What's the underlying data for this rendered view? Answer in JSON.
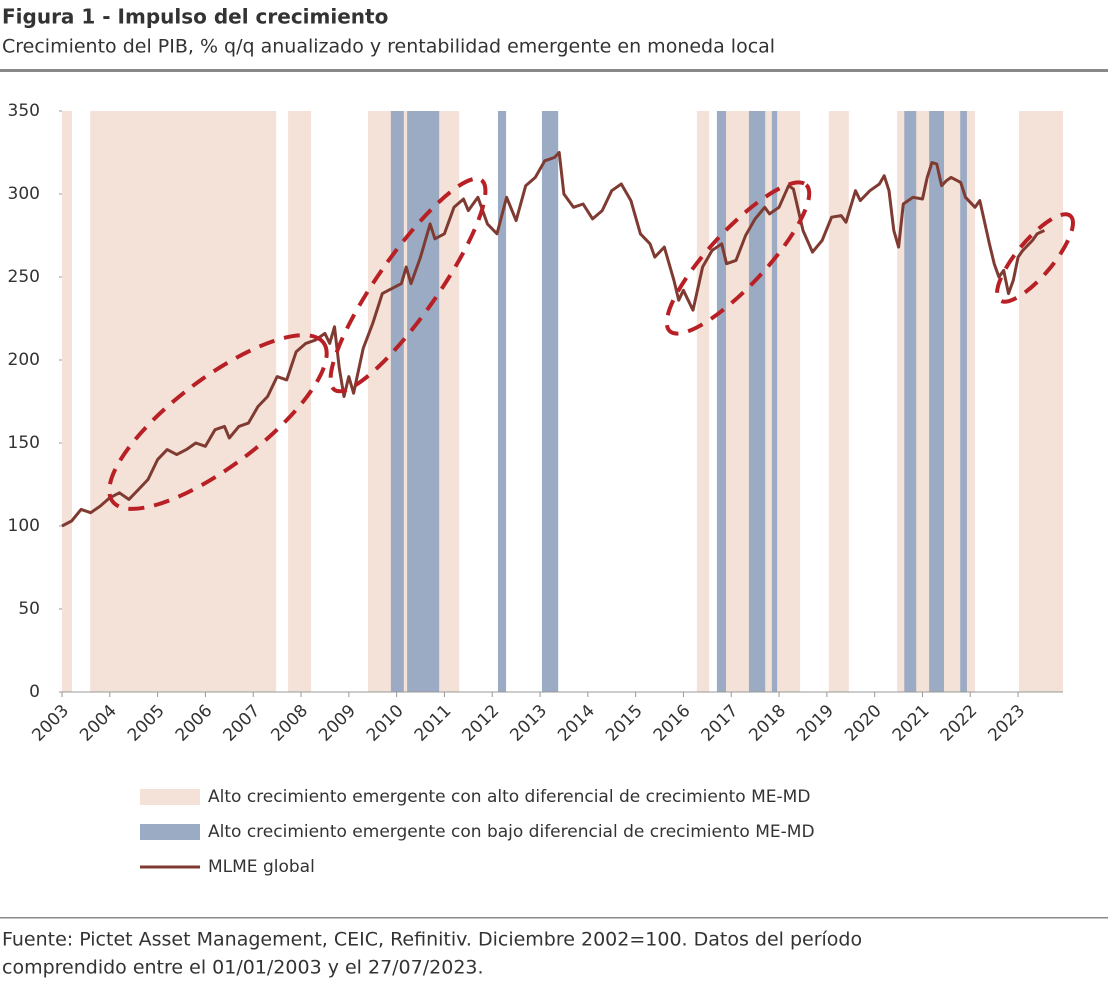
{
  "chart_data": {
    "type": "line",
    "title": "Figura 1 - Impulso del crecimiento",
    "subtitle": "Crecimiento del PIB, % q/q anualizado y rentabilidad emergente en moneda local",
    "x": [
      2003.0,
      2003.2,
      2003.4,
      2003.6,
      2003.8,
      2004.0,
      2004.2,
      2004.4,
      2004.6,
      2004.8,
      2005.0,
      2005.2,
      2005.4,
      2005.6,
      2005.8,
      2006.0,
      2006.2,
      2006.4,
      2006.5,
      2006.7,
      2006.9,
      2007.1,
      2007.3,
      2007.5,
      2007.7,
      2007.9,
      2008.1,
      2008.3,
      2008.5,
      2008.6,
      2008.7,
      2008.8,
      2008.9,
      2009.0,
      2009.1,
      2009.3,
      2009.5,
      2009.7,
      2009.9,
      2010.1,
      2010.2,
      2010.3,
      2010.5,
      2010.7,
      2010.8,
      2011.0,
      2011.2,
      2011.4,
      2011.5,
      2011.7,
      2011.9,
      2012.1,
      2012.3,
      2012.5,
      2012.7,
      2012.9,
      2013.1,
      2013.3,
      2013.4,
      2013.5,
      2013.7,
      2013.9,
      2014.1,
      2014.3,
      2014.5,
      2014.7,
      2014.9,
      2015.1,
      2015.3,
      2015.4,
      2015.6,
      2015.8,
      2015.9,
      2016.0,
      2016.2,
      2016.4,
      2016.6,
      2016.8,
      2016.9,
      2017.1,
      2017.3,
      2017.5,
      2017.7,
      2017.8,
      2018.0,
      2018.2,
      2018.3,
      2018.5,
      2018.7,
      2018.9,
      2019.1,
      2019.3,
      2019.4,
      2019.6,
      2019.7,
      2019.9,
      2020.1,
      2020.2,
      2020.3,
      2020.4,
      2020.5,
      2020.6,
      2020.8,
      2021.0,
      2021.1,
      2021.2,
      2021.3,
      2021.4,
      2021.5,
      2021.6,
      2021.8,
      2021.9,
      2022.1,
      2022.2,
      2022.4,
      2022.5,
      2022.6,
      2022.7,
      2022.8,
      2022.9,
      2023.0,
      2023.1,
      2023.3,
      2023.4,
      2023.55
    ],
    "series": [
      {
        "name": "MLME global",
        "color": "#7f3b32",
        "values": [
          100,
          103,
          110,
          108,
          112,
          117,
          120,
          116,
          122,
          128,
          140,
          146,
          143,
          146,
          150,
          148,
          158,
          160,
          153,
          160,
          162,
          172,
          178,
          190,
          188,
          205,
          210,
          212,
          216,
          210,
          220,
          195,
          178,
          190,
          180,
          207,
          222,
          240,
          243,
          246,
          256,
          246,
          262,
          282,
          273,
          276,
          292,
          297,
          290,
          298,
          282,
          276,
          298,
          284,
          305,
          310,
          320,
          322,
          325,
          300,
          292,
          294,
          285,
          290,
          302,
          306,
          296,
          276,
          270,
          262,
          268,
          248,
          236,
          242,
          230,
          256,
          266,
          270,
          258,
          260,
          275,
          285,
          292,
          288,
          292,
          305,
          303,
          278,
          265,
          272,
          286,
          287,
          283,
          302,
          296,
          302,
          306,
          311,
          302,
          278,
          268,
          294,
          298,
          297,
          310,
          319,
          318,
          305,
          308,
          310,
          307,
          298,
          292,
          296,
          270,
          258,
          250,
          254,
          240,
          248,
          262,
          266,
          272,
          276,
          278
        ]
      }
    ],
    "regions": [
      {
        "name": "Alto crecimiento emergente con alto diferencial de crecimiento ME-MD",
        "color": "#f4e1d7",
        "spans": [
          [
            2003.0,
            2003.21
          ],
          [
            2003.59,
            2007.48
          ],
          [
            2007.73,
            2008.21
          ],
          [
            2009.4,
            2011.31
          ],
          [
            2016.28,
            2016.54
          ],
          [
            2016.89,
            2018.44
          ],
          [
            2019.04,
            2019.46
          ],
          [
            2020.47,
            2022.1
          ],
          [
            2023.02,
            2023.94
          ]
        ]
      },
      {
        "name": "Alto crecimiento emergente con bajo diferencial de crecimiento ME-MD",
        "color": "#9aabc3",
        "spans": [
          [
            2009.88,
            2010.15
          ],
          [
            2010.22,
            2010.89
          ],
          [
            2012.12,
            2012.29
          ],
          [
            2013.04,
            2013.38
          ],
          [
            2016.7,
            2016.89
          ],
          [
            2017.37,
            2017.71
          ],
          [
            2017.85,
            2017.96
          ],
          [
            2020.62,
            2020.87
          ],
          [
            2021.14,
            2021.45
          ],
          [
            2021.79,
            2021.93
          ]
        ]
      }
    ],
    "xlim": [
      2003,
      2023.94
    ],
    "xticks": [
      2003,
      2004,
      2005,
      2006,
      2007,
      2008,
      2009,
      2010,
      2011,
      2012,
      2013,
      2014,
      2015,
      2016,
      2017,
      2018,
      2019,
      2020,
      2021,
      2022,
      2023
    ],
    "ylim": [
      0,
      350
    ],
    "yticks": [
      0,
      50,
      100,
      150,
      200,
      250,
      300,
      350
    ],
    "footer": [
      "Fuente: Pictet Asset Management, CEIC, Refinitiv. Diciembre 2002=100. Datos del período",
      "comprendido entre el 01/01/2003 y el 27/07/2023."
    ]
  }
}
